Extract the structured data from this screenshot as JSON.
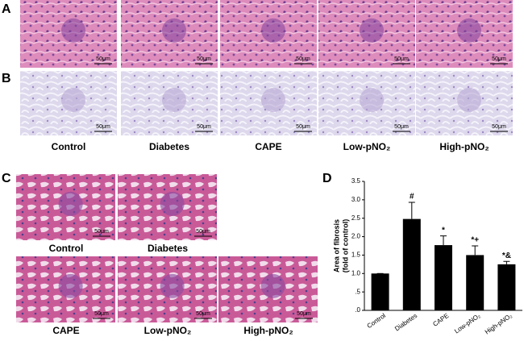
{
  "panel_labels": [
    "A",
    "B",
    "C",
    "D"
  ],
  "scale_bar_label": "50μm",
  "group_captions": [
    "Control",
    "Diabetes",
    "CAPE",
    "Low-pNO₂",
    "High-pNO₂"
  ],
  "chart_data": {
    "type": "bar",
    "y_label": [
      "Area of fibrosis",
      "(fold of control)"
    ],
    "categories": [
      "Control",
      "Diabetes",
      "CAPE",
      "Low-pNO₂",
      "High-pNO₂"
    ],
    "values": [
      1.0,
      2.48,
      1.77,
      1.5,
      1.25
    ],
    "errors": [
      0,
      0.45,
      0.25,
      0.25,
      0.08
    ],
    "value_annotations": [
      null,
      "#",
      "*",
      "*+",
      "*&"
    ],
    "color": "#000000",
    "ylim": [
      0,
      3.5
    ],
    "yticks": [
      {
        "value": 0,
        "label": ".0"
      },
      {
        "value": 0.5,
        "label": ".5"
      },
      {
        "value": 1,
        "label": "1.0"
      },
      {
        "value": 1.5,
        "label": "1.5"
      },
      {
        "value": 2,
        "label": "2.0"
      },
      {
        "value": 2.5,
        "label": "2.5"
      },
      {
        "value": 3,
        "label": "3.0"
      },
      {
        "value": 3.5,
        "label": "3.5"
      }
    ]
  }
}
